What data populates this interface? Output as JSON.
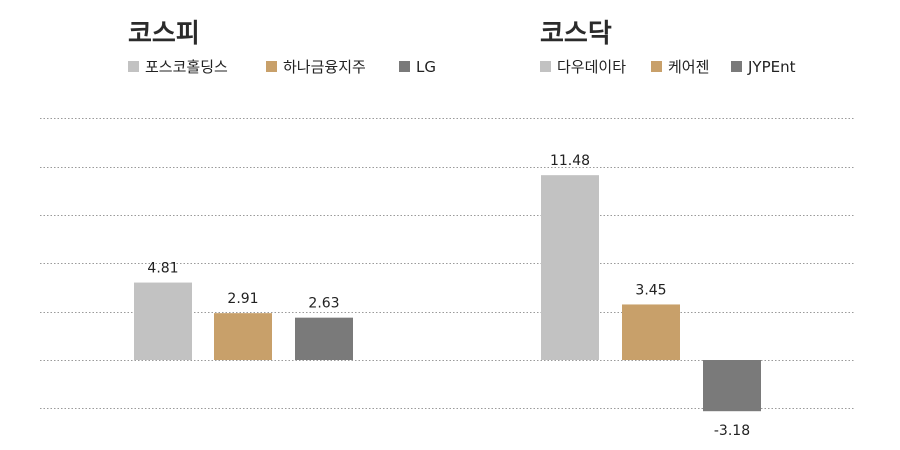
{
  "chart_data": [
    {
      "type": "bar",
      "title": "코스피",
      "categories": [
        "포스코홀딩스",
        "하나금융지주",
        "LG"
      ],
      "values": [
        4.81,
        2.91,
        2.63
      ],
      "colors": [
        "#c2c2c2",
        "#c8a06a",
        "#7a7a7a"
      ],
      "legend": [
        "포스코홀딩스",
        "하나금융지주",
        "LG"
      ],
      "legend_position": "top-left",
      "grid": true,
      "ylim": [
        -4.0,
        15.0
      ],
      "xlabel": "",
      "ylabel": ""
    },
    {
      "type": "bar",
      "title": "코스닥",
      "categories": [
        "다우데이타",
        "케어젠",
        "JYPEnt"
      ],
      "values": [
        11.48,
        3.45,
        -3.18
      ],
      "colors": [
        "#c2c2c2",
        "#c8a06a",
        "#7a7a7a"
      ],
      "legend": [
        "다우데이타",
        "케어젠",
        "JYPEnt"
      ],
      "legend_position": "top-left",
      "grid": true,
      "ylim": [
        -4.0,
        15.0
      ],
      "xlabel": "",
      "ylabel": ""
    }
  ]
}
